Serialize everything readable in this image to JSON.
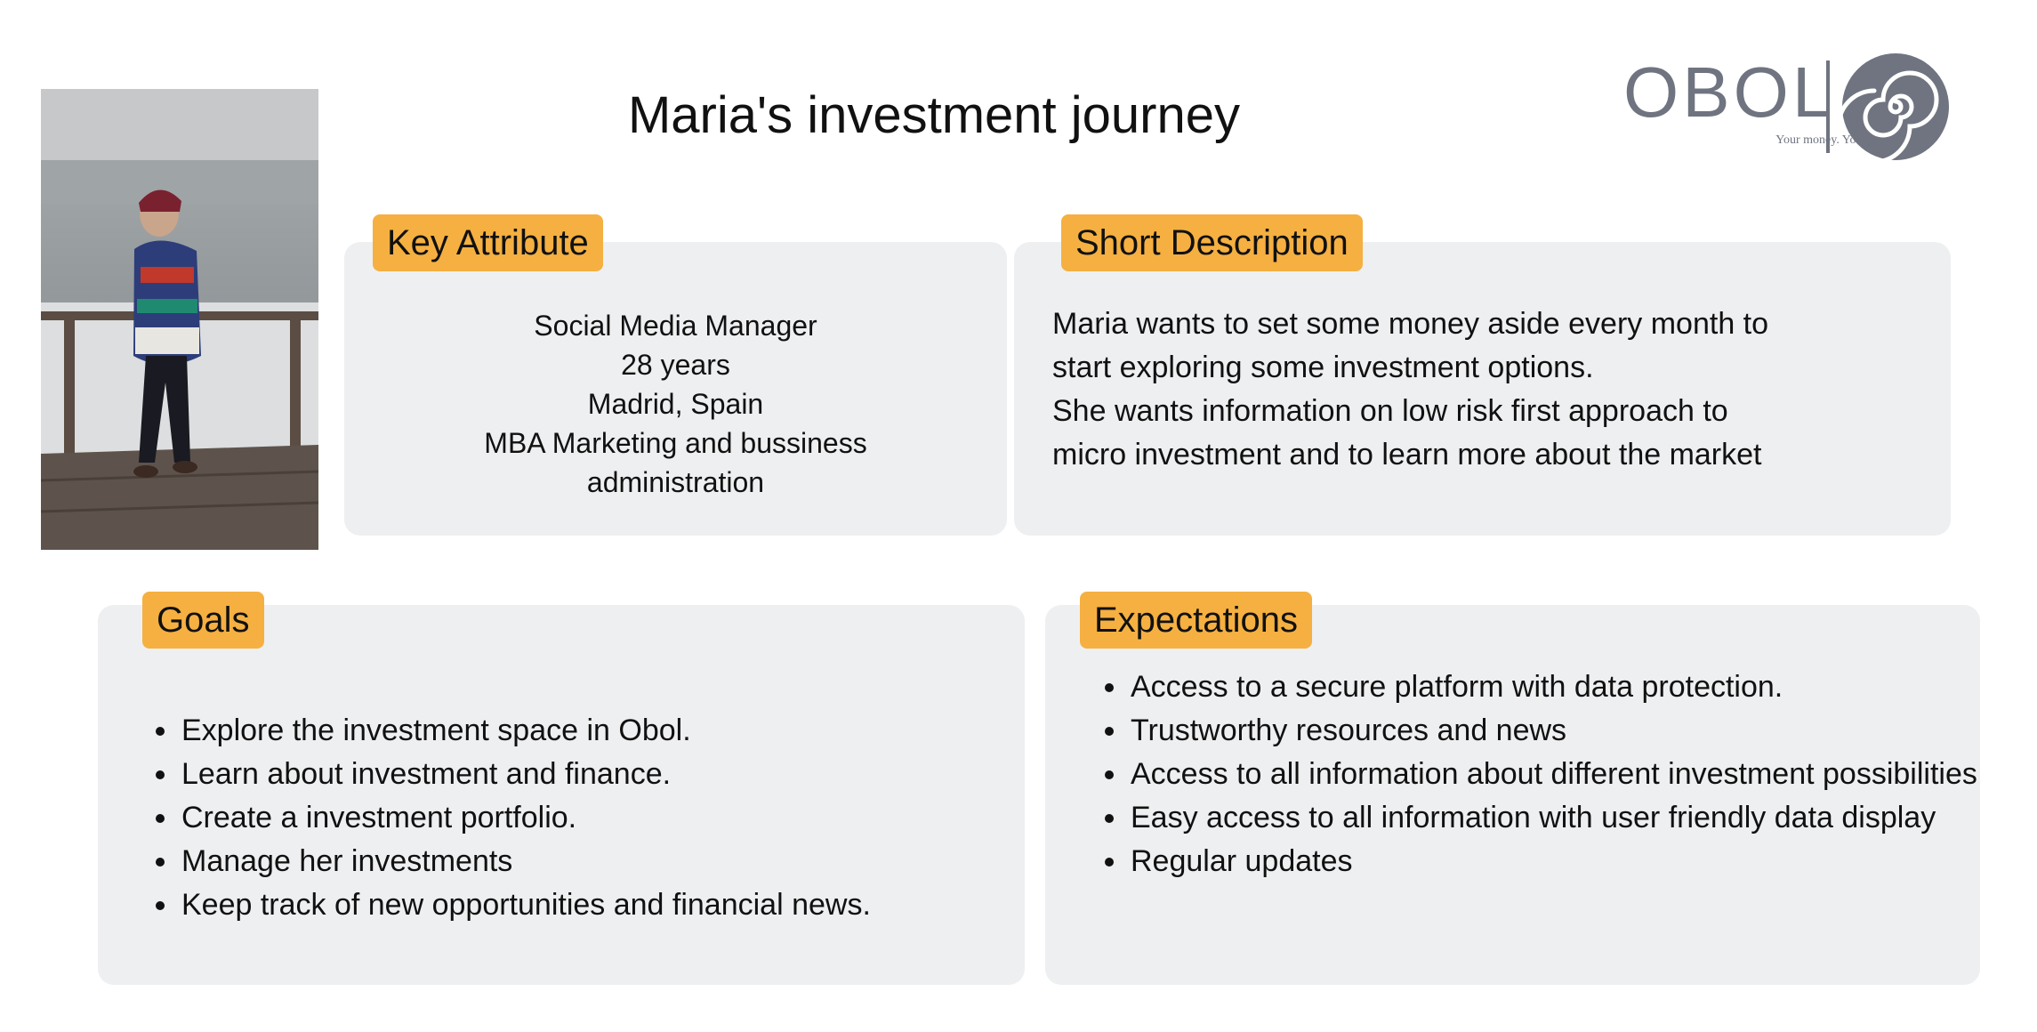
{
  "title": "Maria's investment journey",
  "logo": {
    "word": "OBOL",
    "tagline": "Your money. Your way",
    "icon": "spiral-icon",
    "color": "#6f7480"
  },
  "photo": {
    "alt": "Maria laughing on a wooden deck by a foggy lake",
    "icon": "portrait-photo"
  },
  "colors": {
    "tag": "#f5b041",
    "panel": "#eeeff1"
  },
  "key_attribute": {
    "label": "Key Attribute",
    "lines": [
      "Social Media Manager",
      "28 years",
      "Madrid, Spain",
      "MBA Marketing and bussiness",
      "administration"
    ]
  },
  "short_description": {
    "label": "Short Description",
    "lines": [
      "Maria wants to set some money aside every month to",
      "start exploring some investment options.",
      "She wants information on low risk first approach to",
      "micro investment and to learn more about the market"
    ]
  },
  "goals": {
    "label": "Goals",
    "items": [
      "Explore the investment space in Obol.",
      "Learn about investment and finance.",
      "Create a investment portfolio.",
      "Manage her investments",
      "Keep track of new opportunities and financial news."
    ]
  },
  "expectations": {
    "label": "Expectations",
    "items": [
      "Access to a secure platform with data protection.",
      "Trustworthy resources and news",
      "Access to all information about different investment possibilities",
      "Easy access to all information with user friendly data display",
      "Regular updates"
    ]
  }
}
